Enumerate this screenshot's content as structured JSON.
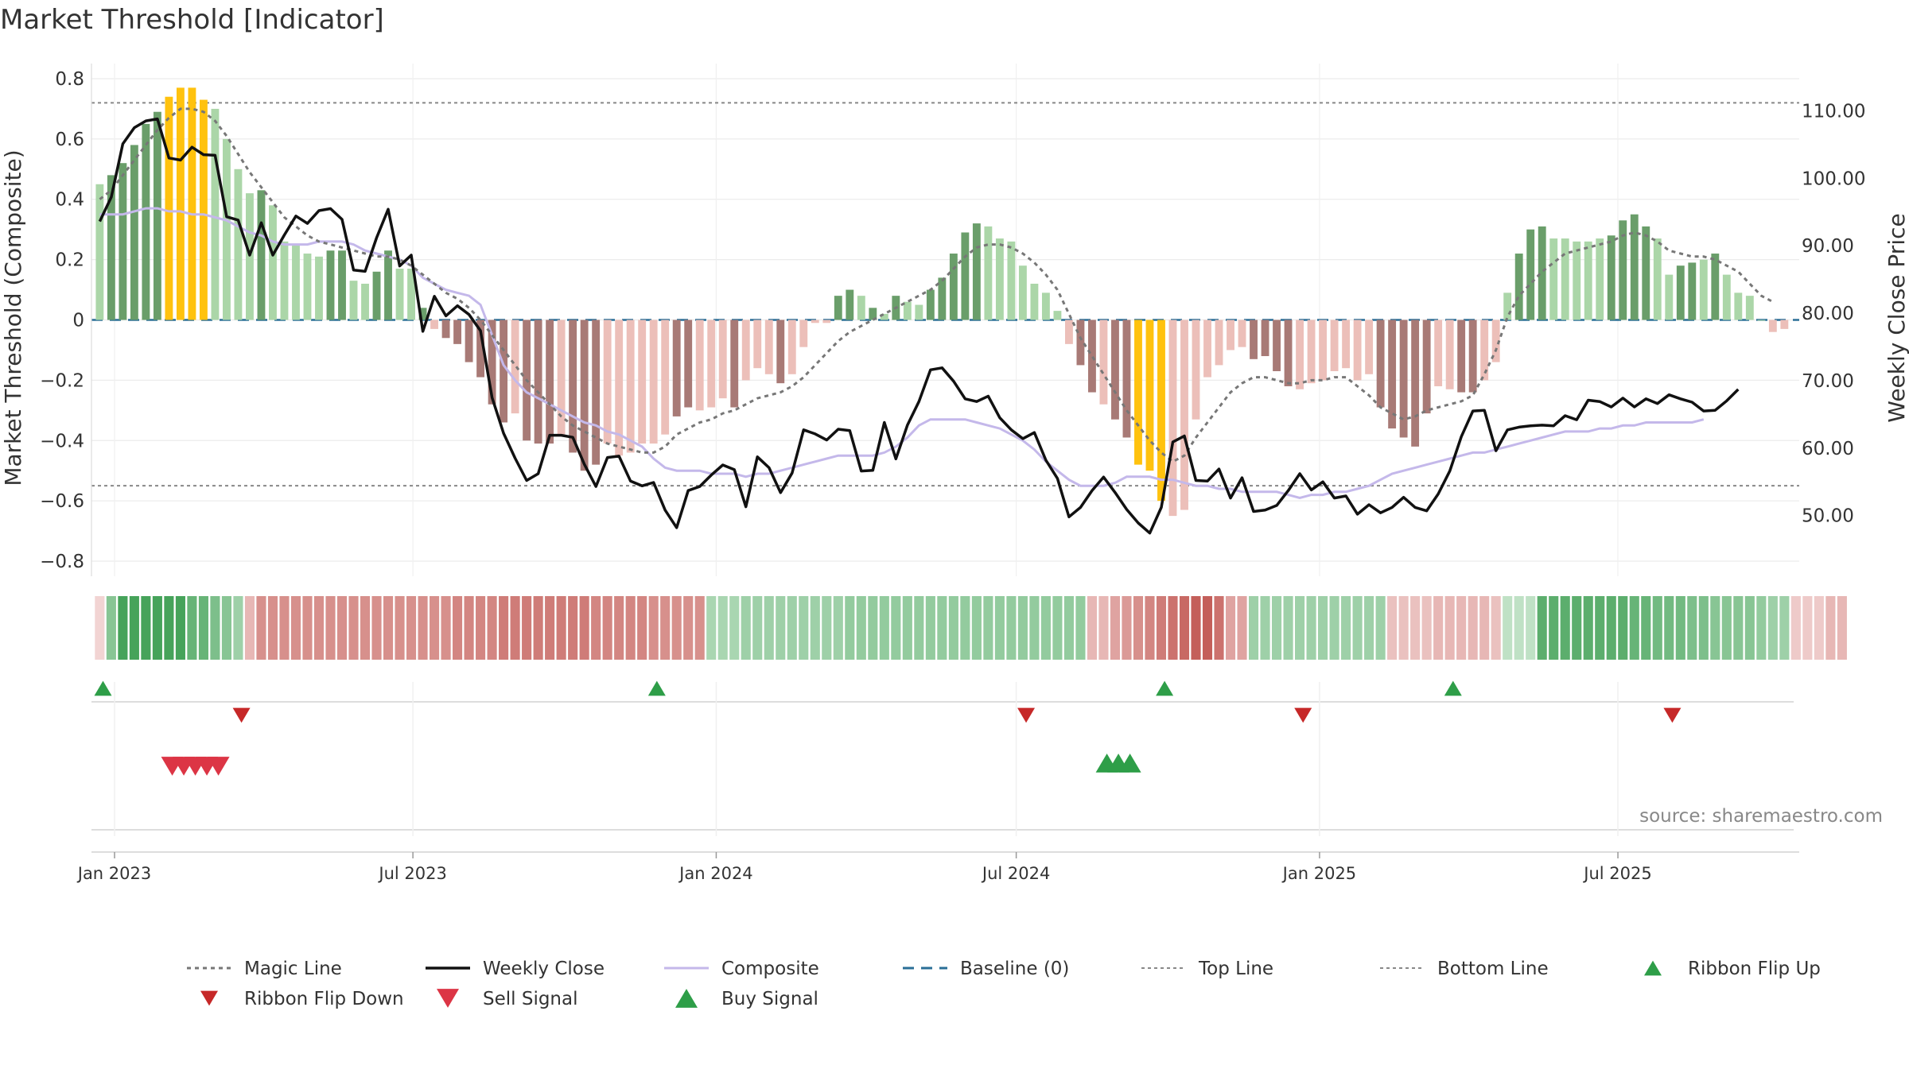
{
  "chart_data": {
    "type": "bar",
    "title": "Market Threshold [Indicator]",
    "source_note": "source: sharemaestro.com",
    "y_left": {
      "label": "Market Threshold (Composite)",
      "range": [
        -0.85,
        0.85
      ],
      "ticks": [
        0.8,
        0.6,
        0.4,
        0.2,
        0,
        -0.2,
        -0.4,
        -0.6,
        -0.8
      ],
      "tick_labels": [
        "0.8",
        "0.6",
        "0.4",
        "0.2",
        "0",
        "−0.2",
        "−0.4",
        "−0.6",
        "−0.8"
      ]
    },
    "y_right": {
      "label": "Weekly Close Price",
      "range": [
        41.0,
        117.0
      ],
      "ticks": [
        110,
        100,
        90,
        80,
        70,
        60,
        50
      ],
      "tick_labels": [
        "110.00",
        "100.00",
        "90.00",
        "80.00",
        "70.00",
        "60.00",
        "50.00"
      ]
    },
    "x_axis": {
      "range": [
        "2022-12-18",
        "2025-10-19"
      ],
      "ticks": [
        "2023-01-01",
        "2023-07-01",
        "2024-01-01",
        "2024-07-01",
        "2025-01-01",
        "2025-07-01"
      ],
      "tick_labels": [
        "Jan 2023",
        "Jul 2023",
        "Jan 2024",
        "Jul 2024",
        "Jan 2025",
        "Jul 2025"
      ],
      "week_start": "2022-12-23"
    },
    "grid": true,
    "top_line": 0.72,
    "bottom_line": -0.55,
    "baseline": 0,
    "colors": {
      "strong_up": "#6a9e6a",
      "weak_up": "#abd6a8",
      "extreme": "#ffc20e",
      "strong_down": "#a87a76",
      "weak_down": "#ecbfb9",
      "weekly_close": "#111111",
      "composite": "#c4b8ea",
      "magic_line": "#777777",
      "baseline": "#2a6f97",
      "ref_lines": "#888888",
      "ribbon_flip_up": "#2e9e48",
      "ribbon_flip_down": "#c62828",
      "sell_signal": "#dc3545",
      "buy_signal": "#2e9e48"
    },
    "bars": [
      0.45,
      0.48,
      0.52,
      0.58,
      0.65,
      0.69,
      0.74,
      0.77,
      0.77,
      0.73,
      0.7,
      0.6,
      0.5,
      0.42,
      0.43,
      0.38,
      0.26,
      0.25,
      0.22,
      0.21,
      0.23,
      0.23,
      0.13,
      0.12,
      0.16,
      0.23,
      0.17,
      0.17,
      0.04,
      -0.03,
      -0.06,
      -0.08,
      -0.14,
      -0.19,
      -0.28,
      -0.34,
      -0.31,
      -0.4,
      -0.41,
      -0.41,
      -0.38,
      -0.44,
      -0.5,
      -0.48,
      -0.41,
      -0.45,
      -0.44,
      -0.41,
      -0.41,
      -0.38,
      -0.32,
      -0.29,
      -0.3,
      -0.29,
      -0.26,
      -0.29,
      -0.2,
      -0.16,
      -0.18,
      -0.21,
      -0.18,
      -0.09,
      -0.01,
      -0.01,
      0.08,
      0.1,
      0.08,
      0.04,
      0.02,
      0.08,
      0.06,
      0.05,
      0.1,
      0.14,
      0.22,
      0.29,
      0.32,
      0.31,
      0.27,
      0.26,
      0.18,
      0.12,
      0.09,
      0.03,
      -0.08,
      -0.15,
      -0.24,
      -0.28,
      -0.33,
      -0.39,
      -0.48,
      -0.5,
      -0.6,
      -0.65,
      -0.63,
      -0.33,
      -0.19,
      -0.15,
      -0.1,
      -0.09,
      -0.13,
      -0.12,
      -0.17,
      -0.22,
      -0.23,
      -0.21,
      -0.2,
      -0.17,
      -0.16,
      -0.2,
      -0.18,
      -0.29,
      -0.36,
      -0.39,
      -0.42,
      -0.31,
      -0.22,
      -0.23,
      -0.24,
      -0.24,
      -0.2,
      -0.14,
      0.09,
      0.22,
      0.3,
      0.31,
      0.27,
      0.27,
      0.26,
      0.26,
      0.27,
      0.28,
      0.33,
      0.35,
      0.31,
      0.27,
      0.15,
      0.18,
      0.19,
      0.2,
      0.22,
      0.15,
      0.09,
      0.08,
      0.0,
      -0.04,
      -0.03
    ],
    "bar_style": [
      "weak",
      "strong",
      "strong",
      "strong",
      "strong",
      "strong",
      "extreme",
      "extreme",
      "extreme",
      "extreme",
      "weak",
      "weak",
      "weak",
      "weak",
      "strong",
      "weak",
      "weak",
      "weak",
      "weak",
      "weak",
      "strong",
      "strong",
      "weak",
      "weak",
      "strong",
      "strong",
      "weak",
      "weak",
      "strong",
      "weak",
      "strong",
      "strong",
      "strong",
      "strong",
      "strong",
      "strong",
      "weak",
      "strong",
      "strong",
      "strong",
      "weak",
      "strong",
      "strong",
      "strong",
      "weak",
      "weak",
      "weak",
      "weak",
      "weak",
      "weak",
      "strong",
      "strong",
      "weak",
      "weak",
      "weak",
      "strong",
      "weak",
      "weak",
      "weak",
      "strong",
      "weak",
      "weak",
      "weak",
      "weak",
      "strong",
      "strong",
      "weak",
      "strong",
      "weak",
      "strong",
      "weak",
      "weak",
      "strong",
      "strong",
      "strong",
      "strong",
      "strong",
      "weak",
      "weak",
      "weak",
      "weak",
      "weak",
      "weak",
      "weak",
      "weak",
      "strong",
      "strong",
      "weak",
      "strong",
      "strong",
      "extreme",
      "extreme",
      "extreme",
      "weak",
      "weak",
      "weak",
      "weak",
      "weak",
      "weak",
      "weak",
      "strong",
      "strong",
      "strong",
      "strong",
      "weak",
      "weak",
      "weak",
      "weak",
      "weak",
      "weak",
      "weak",
      "strong",
      "strong",
      "strong",
      "strong",
      "strong",
      "weak",
      "weak",
      "strong",
      "strong",
      "weak",
      "weak",
      "weak",
      "strong",
      "strong",
      "strong",
      "weak",
      "weak",
      "weak",
      "weak",
      "weak",
      "strong",
      "strong",
      "strong",
      "strong",
      "weak",
      "weak",
      "strong",
      "strong",
      "weak",
      "strong",
      "weak",
      "weak",
      "weak",
      "weak",
      "weak",
      "weak"
    ],
    "series": [
      {
        "name": "Weekly Close",
        "axis": "right",
        "values": [
          93.6,
          97.2,
          105.1,
          107.5,
          108.5,
          108.8,
          103.0,
          102.7,
          104.6,
          103.5,
          103.4,
          94.3,
          93.8,
          88.6,
          93.4,
          88.6,
          91.6,
          94.4,
          93.3,
          95.2,
          95.5,
          93.9,
          86.4,
          86.2,
          91.2,
          95.4,
          87.0,
          88.6,
          77.3,
          82.5,
          79.6,
          81.1,
          79.8,
          77.4,
          67.5,
          62.2,
          58.5,
          55.2,
          56.2,
          61.9,
          61.9,
          61.6,
          57.6,
          54.3,
          58.6,
          58.8,
          55.1,
          54.4,
          54.9,
          50.8,
          48.2,
          53.7,
          54.3,
          56.0,
          57.5,
          56.8,
          51.3,
          58.7,
          57.1,
          53.4,
          56.3,
          62.7,
          62.1,
          61.2,
          62.8,
          62.6,
          56.6,
          56.7,
          63.8,
          58.4,
          63.4,
          66.9,
          71.6,
          71.9,
          69.9,
          67.3,
          66.9,
          67.7,
          64.5,
          62.7,
          61.4,
          62.3,
          58.2,
          55.5,
          49.8,
          51.2,
          53.7,
          55.7,
          53.4,
          50.9,
          48.9,
          47.4,
          51.2,
          60.9,
          61.8,
          55.2,
          55.1,
          56.9,
          52.6,
          55.6,
          50.6,
          50.8,
          51.5,
          53.7,
          56.2,
          53.8,
          55.0,
          52.6,
          52.9,
          50.2,
          51.6,
          50.4,
          51.2,
          52.7,
          51.2,
          50.7,
          53.2,
          56.6,
          61.7,
          65.5,
          65.6,
          59.6,
          62.7,
          63.1,
          63.3,
          63.4,
          63.3,
          64.8,
          64.2,
          67.1,
          66.9,
          66.1,
          67.4,
          66.1,
          67.3,
          66.6,
          67.9,
          67.3,
          66.8,
          65.5,
          65.6,
          67.0,
          68.7
        ]
      },
      {
        "name": "Composite",
        "axis": "left",
        "values": [
          0.35,
          0.35,
          0.35,
          0.36,
          0.37,
          0.37,
          0.36,
          0.36,
          0.35,
          0.35,
          0.34,
          0.33,
          0.31,
          0.29,
          0.28,
          0.26,
          0.25,
          0.25,
          0.25,
          0.26,
          0.26,
          0.26,
          0.25,
          0.23,
          0.22,
          0.21,
          0.2,
          0.18,
          0.14,
          0.12,
          0.1,
          0.09,
          0.08,
          0.05,
          -0.05,
          -0.15,
          -0.2,
          -0.24,
          -0.26,
          -0.28,
          -0.3,
          -0.32,
          -0.34,
          -0.35,
          -0.37,
          -0.38,
          -0.4,
          -0.42,
          -0.46,
          -0.49,
          -0.5,
          -0.5,
          -0.5,
          -0.51,
          -0.51,
          -0.51,
          -0.52,
          -0.51,
          -0.51,
          -0.5,
          -0.49,
          -0.48,
          -0.47,
          -0.46,
          -0.45,
          -0.45,
          -0.45,
          -0.45,
          -0.44,
          -0.42,
          -0.39,
          -0.35,
          -0.33,
          -0.33,
          -0.33,
          -0.33,
          -0.34,
          -0.35,
          -0.36,
          -0.38,
          -0.4,
          -0.43,
          -0.47,
          -0.5,
          -0.53,
          -0.55,
          -0.55,
          -0.55,
          -0.54,
          -0.52,
          -0.52,
          -0.52,
          -0.53,
          -0.53,
          -0.54,
          -0.55,
          -0.55,
          -0.56,
          -0.56,
          -0.57,
          -0.57,
          -0.57,
          -0.57,
          -0.58,
          -0.59,
          -0.58,
          -0.58,
          -0.57,
          -0.57,
          -0.56,
          -0.55,
          -0.53,
          -0.51,
          -0.5,
          -0.49,
          -0.48,
          -0.47,
          -0.46,
          -0.45,
          -0.44,
          -0.44,
          -0.43,
          -0.42,
          -0.41,
          -0.4,
          -0.39,
          -0.38,
          -0.37,
          -0.37,
          -0.37,
          -0.36,
          -0.36,
          -0.35,
          -0.35,
          -0.34,
          -0.34,
          -0.34,
          -0.34,
          -0.34,
          -0.33
        ]
      },
      {
        "name": "Magic Line",
        "axis": "left",
        "values": [
          0.4,
          0.43,
          0.48,
          0.53,
          0.58,
          0.63,
          0.67,
          0.7,
          0.7,
          0.69,
          0.66,
          0.61,
          0.55,
          0.49,
          0.44,
          0.39,
          0.34,
          0.31,
          0.28,
          0.26,
          0.25,
          0.24,
          0.23,
          0.22,
          0.21,
          0.21,
          0.2,
          0.18,
          0.15,
          0.12,
          0.09,
          0.07,
          0.04,
          0.0,
          -0.05,
          -0.1,
          -0.15,
          -0.2,
          -0.24,
          -0.28,
          -0.32,
          -0.35,
          -0.37,
          -0.39,
          -0.41,
          -0.42,
          -0.43,
          -0.44,
          -0.44,
          -0.42,
          -0.38,
          -0.36,
          -0.34,
          -0.33,
          -0.31,
          -0.3,
          -0.28,
          -0.26,
          -0.25,
          -0.24,
          -0.22,
          -0.19,
          -0.15,
          -0.11,
          -0.07,
          -0.04,
          -0.02,
          0.0,
          0.02,
          0.04,
          0.06,
          0.08,
          0.1,
          0.13,
          0.17,
          0.21,
          0.24,
          0.25,
          0.25,
          0.24,
          0.22,
          0.19,
          0.15,
          0.1,
          0.02,
          -0.06,
          -0.12,
          -0.18,
          -0.24,
          -0.3,
          -0.35,
          -0.4,
          -0.44,
          -0.47,
          -0.45,
          -0.39,
          -0.34,
          -0.29,
          -0.24,
          -0.21,
          -0.19,
          -0.19,
          -0.2,
          -0.21,
          -0.21,
          -0.2,
          -0.2,
          -0.19,
          -0.19,
          -0.22,
          -0.25,
          -0.29,
          -0.31,
          -0.33,
          -0.32,
          -0.3,
          -0.29,
          -0.28,
          -0.27,
          -0.25,
          -0.18,
          -0.1,
          0.01,
          0.08,
          0.12,
          0.16,
          0.19,
          0.22,
          0.23,
          0.24,
          0.25,
          0.26,
          0.28,
          0.29,
          0.28,
          0.26,
          0.23,
          0.22,
          0.21,
          0.21,
          0.2,
          0.18,
          0.16,
          0.12,
          0.08,
          0.06
        ]
      }
    ],
    "ribbon": [
      -0.05,
      0.4,
      0.7,
      0.7,
      0.7,
      0.7,
      0.7,
      0.7,
      0.55,
      0.55,
      0.45,
      0.4,
      0.3,
      -0.2,
      -0.4,
      -0.4,
      -0.4,
      -0.4,
      -0.4,
      -0.4,
      -0.4,
      -0.4,
      -0.4,
      -0.4,
      -0.4,
      -0.4,
      -0.4,
      -0.4,
      -0.4,
      -0.4,
      -0.4,
      -0.45,
      -0.45,
      -0.45,
      -0.45,
      -0.5,
      -0.5,
      -0.5,
      -0.5,
      -0.5,
      -0.5,
      -0.5,
      -0.5,
      -0.45,
      -0.45,
      -0.45,
      -0.45,
      -0.45,
      -0.4,
      -0.4,
      -0.4,
      -0.4,
      -0.4,
      0.25,
      0.25,
      0.25,
      0.3,
      0.3,
      0.3,
      0.3,
      0.3,
      0.3,
      0.3,
      0.3,
      0.3,
      0.35,
      0.35,
      0.35,
      0.35,
      0.35,
      0.35,
      0.35,
      0.35,
      0.35,
      0.35,
      0.35,
      0.35,
      0.35,
      0.35,
      0.35,
      0.35,
      0.35,
      0.35,
      0.35,
      0.35,
      0.35,
      -0.2,
      -0.2,
      -0.3,
      -0.35,
      -0.4,
      -0.45,
      -0.5,
      -0.55,
      -0.6,
      -0.65,
      -0.65,
      -0.55,
      -0.3,
      -0.3,
      0.3,
      0.3,
      0.3,
      0.3,
      0.3,
      0.3,
      0.3,
      0.3,
      0.3,
      0.3,
      0.3,
      0.3,
      -0.15,
      -0.15,
      -0.15,
      -0.15,
      -0.2,
      -0.2,
      -0.2,
      -0.2,
      -0.2,
      -0.15,
      0.15,
      0.15,
      0.15,
      0.6,
      0.6,
      0.6,
      0.6,
      0.6,
      0.6,
      0.6,
      0.6,
      0.55,
      0.55,
      0.5,
      0.5,
      0.5,
      0.45,
      0.45,
      0.4,
      0.4,
      0.4,
      0.4,
      0.35,
      0.3,
      0.3,
      -0.1,
      -0.1,
      -0.1,
      -0.2,
      -0.2
    ],
    "ribbon_flip_up": [
      "2022-12-25",
      "2023-11-26",
      "2024-09-29",
      "2025-03-23"
    ],
    "ribbon_flip_down": [
      "2023-03-19",
      "2024-07-07",
      "2024-12-22",
      "2025-08-03"
    ],
    "sell_signals": [
      "2023-02-05",
      "2023-02-12",
      "2023-02-19",
      "2023-02-26",
      "2023-03-05"
    ],
    "buy_signals": [
      "2024-08-25",
      "2024-09-01",
      "2024-09-08"
    ]
  },
  "legend": [
    {
      "label": "Magic Line",
      "icon": "dotted-line"
    },
    {
      "label": "Weekly Close",
      "icon": "solid-line"
    },
    {
      "label": "Composite",
      "icon": "solid-line"
    },
    {
      "label": "Baseline (0)",
      "icon": "dashed-line"
    },
    {
      "label": "Top Line",
      "icon": "fine-dotted-line"
    },
    {
      "label": "Bottom Line",
      "icon": "fine-dotted-line"
    },
    {
      "label": "Ribbon Flip Up",
      "icon": "triangle-up-icon"
    },
    {
      "label": "Ribbon Flip Down",
      "icon": "triangle-down-icon"
    },
    {
      "label": "Sell Signal",
      "icon": "triangle-down-icon"
    },
    {
      "label": "Buy Signal",
      "icon": "triangle-up-icon"
    }
  ]
}
